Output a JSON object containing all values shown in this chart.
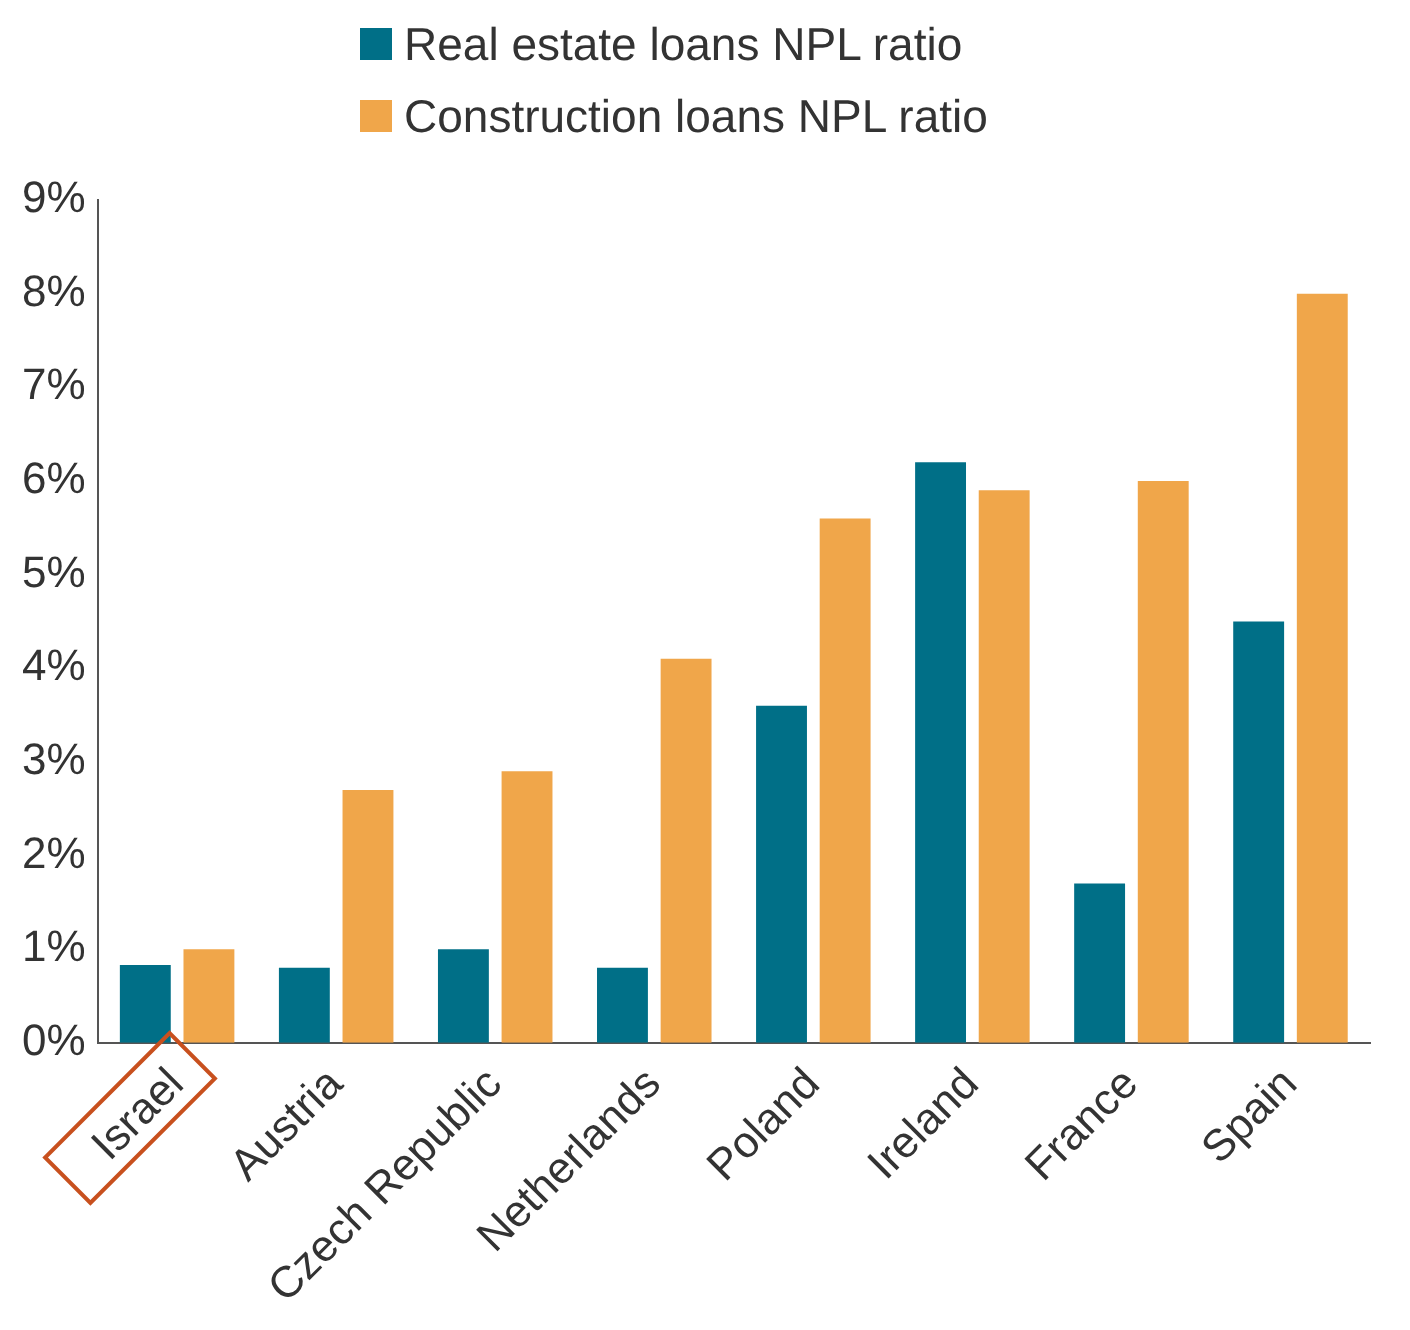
{
  "chart_data": {
    "type": "bar",
    "categories": [
      "Israel",
      "Austria",
      "Czech Republic",
      "Netherlands",
      "Poland",
      "Ireland",
      "France",
      "Spain"
    ],
    "series": [
      {
        "name": "Real estate loans NPL ratio",
        "color": "#006f87",
        "values": [
          0.83,
          0.8,
          1.0,
          0.8,
          3.6,
          6.2,
          1.7,
          4.5
        ]
      },
      {
        "name": "Construction loans NPL ratio",
        "color": "#f0a64a",
        "values": [
          1.0,
          2.7,
          2.9,
          4.1,
          5.6,
          5.9,
          6.0,
          8.0
        ]
      }
    ],
    "ylim": [
      0,
      9
    ],
    "yticks": [
      {
        "value": 0,
        "label": "0%"
      },
      {
        "value": 1,
        "label": "1%"
      },
      {
        "value": 2,
        "label": "2%"
      },
      {
        "value": 3,
        "label": "3%"
      },
      {
        "value": 4,
        "label": "4%"
      },
      {
        "value": 5,
        "label": "5%"
      },
      {
        "value": 6,
        "label": "6%"
      },
      {
        "value": 7,
        "label": "7%"
      },
      {
        "value": 8,
        "label": "8%"
      },
      {
        "value": 9,
        "label": "9%"
      }
    ],
    "grid": false,
    "legend": "top"
  }
}
